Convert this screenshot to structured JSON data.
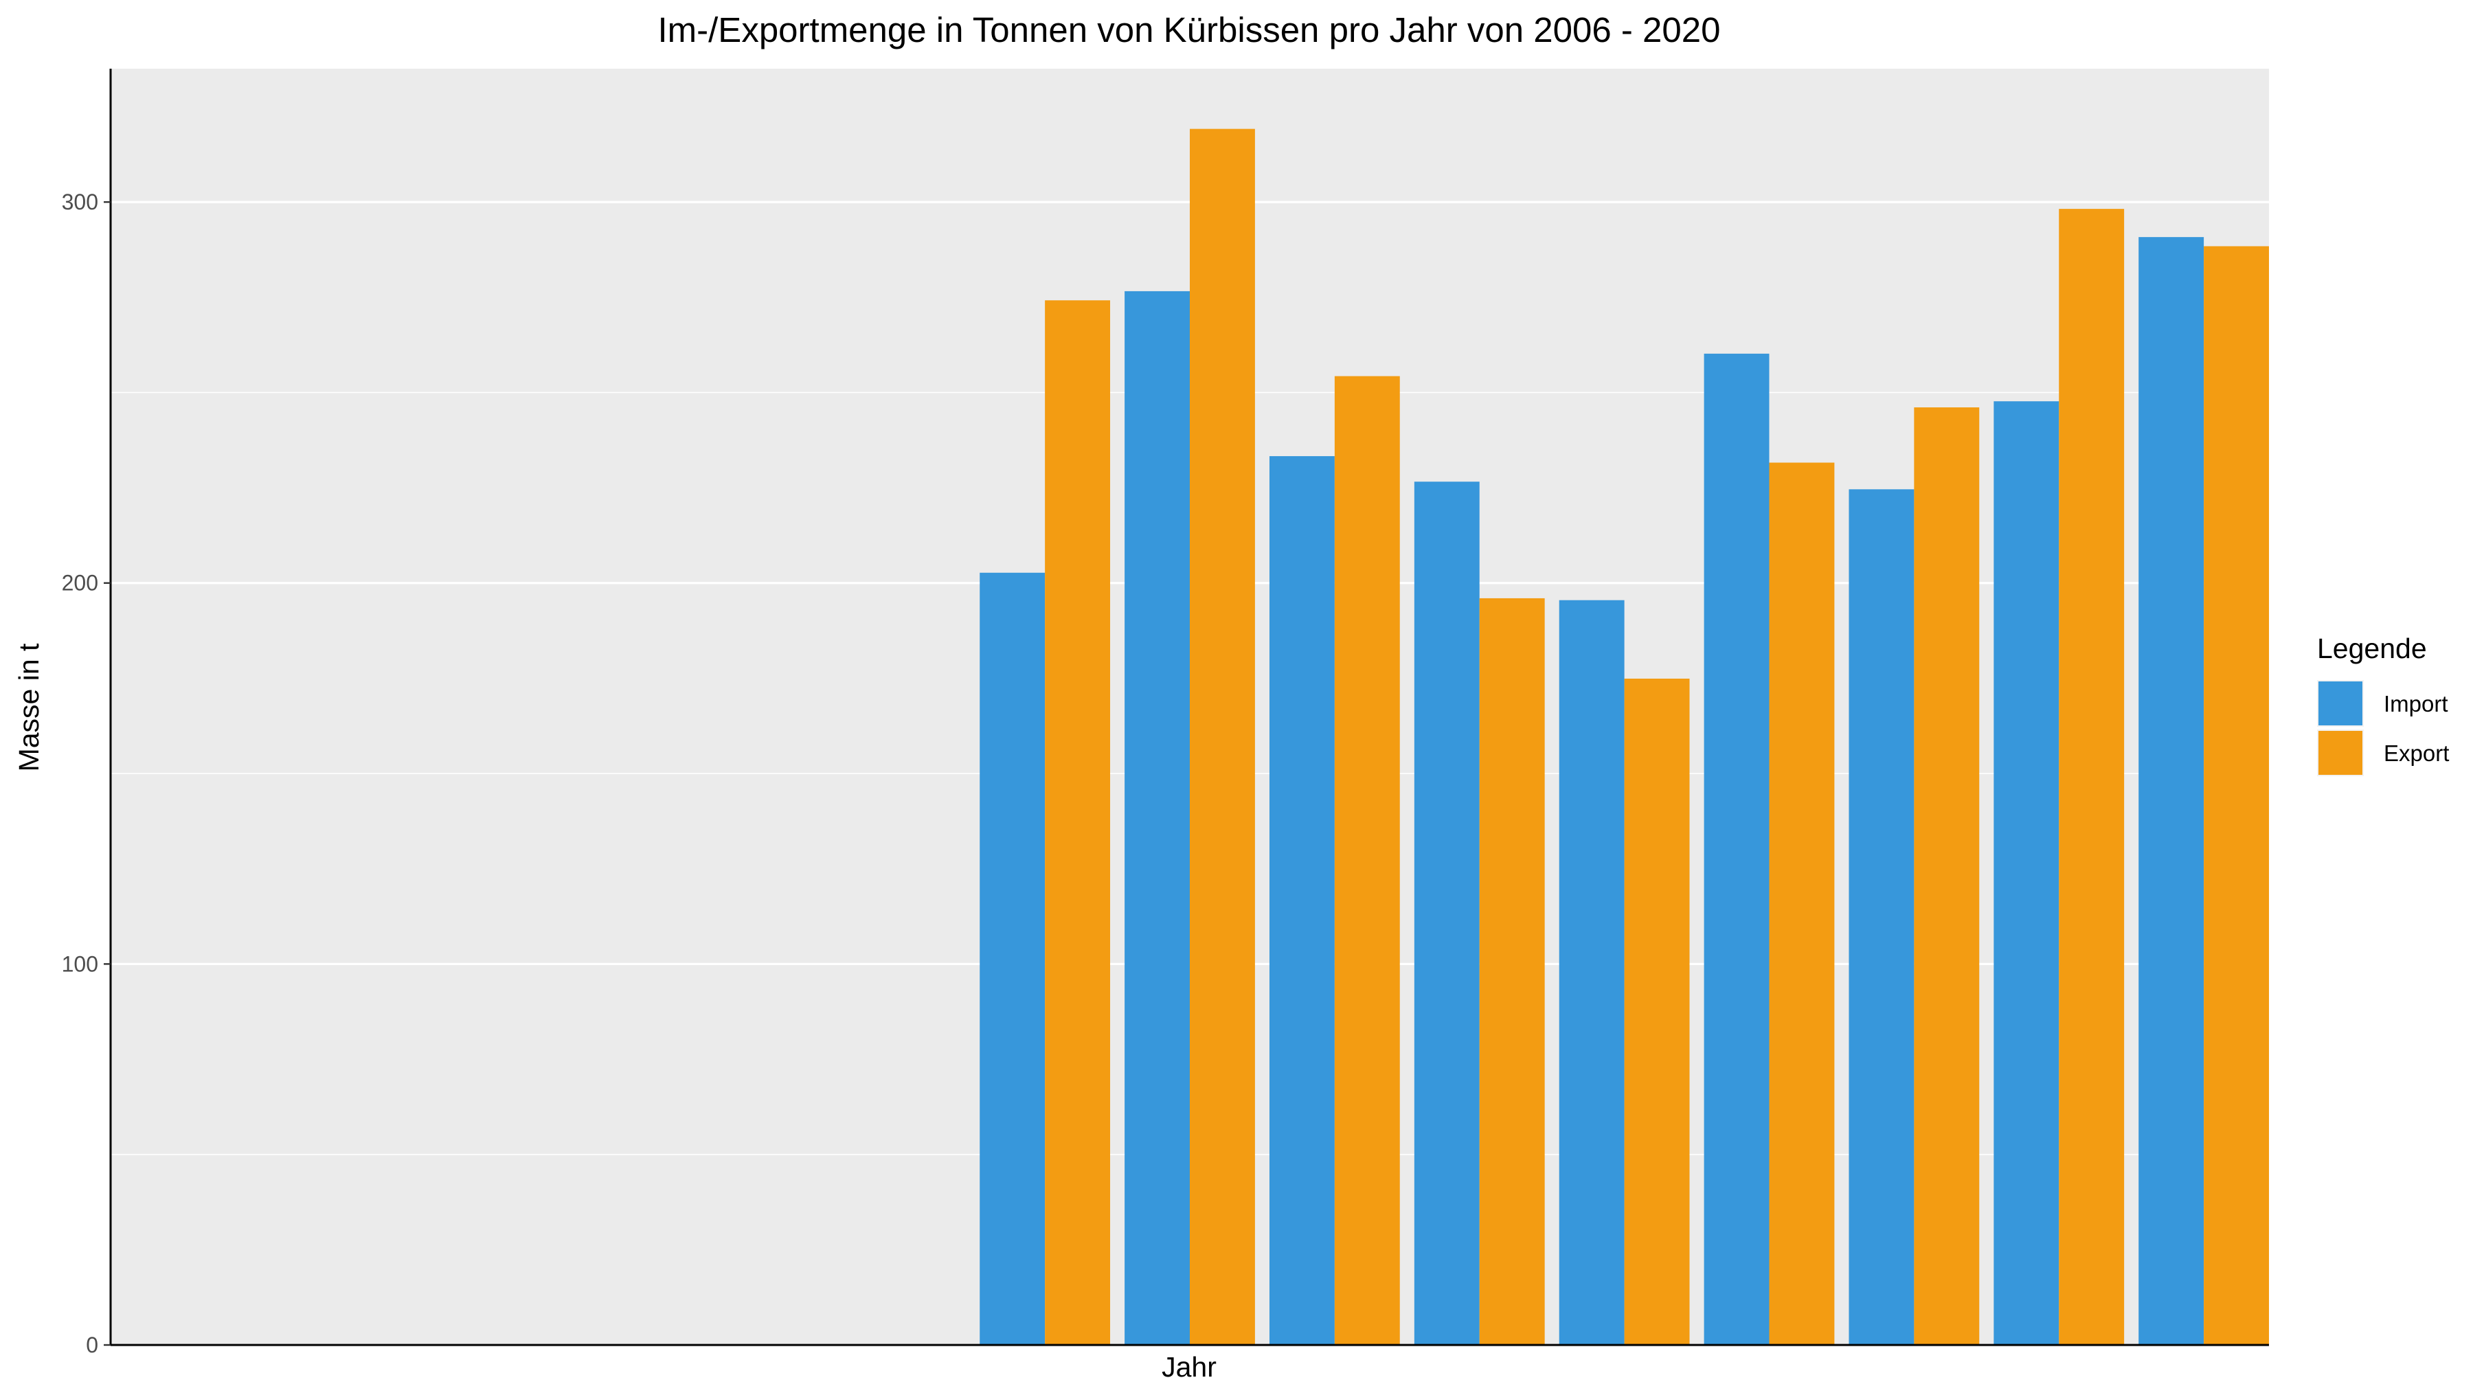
{
  "chart_data": {
    "type": "bar",
    "title": "Im-/Exportmenge in Tonnen von Kürbissen pro Jahr von 2006 - 2020",
    "xlabel": "Jahr",
    "ylabel": "Masse in t",
    "ylim": [
      0,
      335
    ],
    "yticks": [
      "0",
      "100",
      "200",
      "300"
    ],
    "grid": true,
    "legend": {
      "title": "Legende",
      "position": "right"
    },
    "series": [
      {
        "name": "Import",
        "color": "#3797db",
        "values": [
          null,
          null,
          null,
          null,
          null,
          null,
          202.7,
          276.6,
          233.3,
          226.6,
          195.5,
          260.2,
          224.6,
          247.7,
          290.8
        ]
      },
      {
        "name": "Export",
        "color": "#f39c12",
        "values": [
          null,
          null,
          null,
          null,
          null,
          null,
          274.2,
          319.2,
          254.3,
          196.0,
          174.9,
          231.6,
          246.1,
          298.2,
          288.4
        ]
      }
    ]
  }
}
